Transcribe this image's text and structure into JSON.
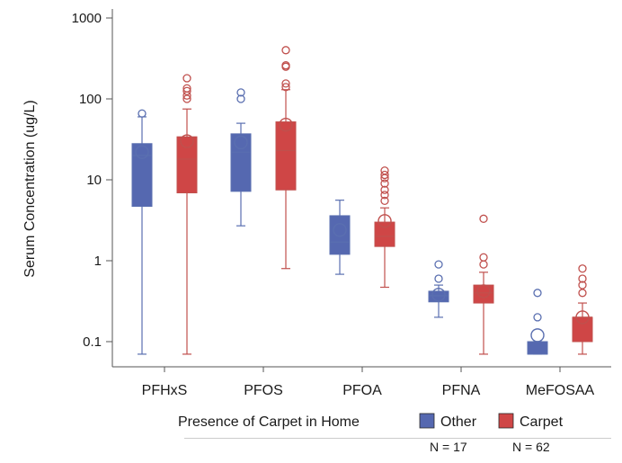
{
  "chart_data": {
    "type": "boxplot",
    "title": "",
    "xlabel": "",
    "ylabel": "Serum Concentration (ug/L)",
    "yscale": "log",
    "ylim": [
      0.05,
      1000
    ],
    "yticks": [
      0.1,
      1,
      10,
      100,
      1000
    ],
    "ytick_labels": [
      "0.1",
      "1",
      "10",
      "100",
      "1000"
    ],
    "grid": false,
    "legend_title": "Presence of Carpet in Home",
    "legend_position": "bottom",
    "categories": [
      "PFHxS",
      "PFOS",
      "PFOA",
      "PFNA",
      "MeFOSAA"
    ],
    "series": [
      {
        "name": "Other",
        "color": "#5568b0",
        "boxes": [
          {
            "min": 0.07,
            "q1": 4.7,
            "median": 20,
            "q3": 28,
            "max": 60,
            "mean": 22,
            "outliers": [
              66
            ]
          },
          {
            "min": 2.7,
            "q1": 7.2,
            "median": 22,
            "q3": 37,
            "max": 50,
            "mean": 29,
            "outliers": [
              100,
              120
            ]
          },
          {
            "min": 0.68,
            "q1": 1.2,
            "median": 1.7,
            "q3": 3.6,
            "max": 5.6,
            "mean": 2.4,
            "outliers": []
          },
          {
            "min": 0.2,
            "q1": 0.31,
            "median": 0.37,
            "q3": 0.42,
            "max": 0.5,
            "mean": 0.38,
            "outliers": [
              0.6,
              0.9
            ]
          },
          {
            "min": 0.07,
            "q1": 0.07,
            "median": 0.07,
            "q3": 0.1,
            "max": 0.1,
            "mean": 0.12,
            "outliers": [
              0.2,
              0.4
            ]
          }
        ]
      },
      {
        "name": "Carpet",
        "color": "#cf4646",
        "boxes": [
          {
            "min": 0.07,
            "q1": 6.9,
            "median": 18,
            "q3": 34,
            "max": 75,
            "mean": 30,
            "outliers": [
              100,
              110,
              125,
              135,
              180
            ]
          },
          {
            "min": 0.8,
            "q1": 7.5,
            "median": 23,
            "q3": 52,
            "max": 130,
            "mean": 48,
            "outliers": [
              140,
              155,
              250,
              260,
              400
            ]
          },
          {
            "min": 0.47,
            "q1": 1.5,
            "median": 2.0,
            "q3": 3.0,
            "max": 4.5,
            "mean": 3.1,
            "outliers": [
              5.5,
              6.5,
              7.5,
              9,
              10.5,
              11.5,
              13
            ]
          },
          {
            "min": 0.07,
            "q1": 0.3,
            "median": 0.4,
            "q3": 0.5,
            "max": 0.72,
            "mean": 0.42,
            "outliers": [
              0.9,
              1.1,
              3.3
            ]
          },
          {
            "min": 0.07,
            "q1": 0.1,
            "median": 0.2,
            "q3": 0.2,
            "max": 0.3,
            "mean": 0.2,
            "outliers": [
              0.4,
              0.5,
              0.6,
              0.8
            ]
          }
        ]
      }
    ]
  },
  "notes": {
    "other_n": "N = 17",
    "carpet_n": "N = 62"
  }
}
